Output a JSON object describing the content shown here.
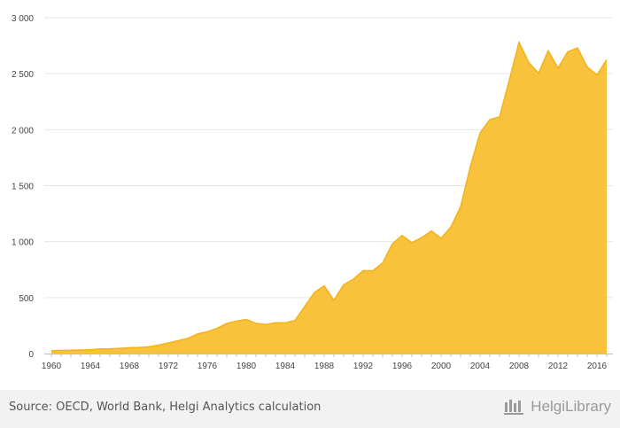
{
  "chart_data": {
    "type": "area",
    "x": [
      1960,
      1961,
      1962,
      1963,
      1964,
      1965,
      1966,
      1967,
      1968,
      1969,
      1970,
      1971,
      1972,
      1973,
      1974,
      1975,
      1976,
      1977,
      1978,
      1979,
      1980,
      1981,
      1982,
      1983,
      1984,
      1985,
      1986,
      1987,
      1988,
      1989,
      1990,
      1991,
      1992,
      1993,
      1994,
      1995,
      1996,
      1997,
      1998,
      1999,
      2000,
      2001,
      2002,
      2003,
      2004,
      2005,
      2006,
      2007,
      2008,
      2009,
      2010,
      2011,
      2012,
      2013,
      2014,
      2015,
      2016,
      2017
    ],
    "values": [
      25,
      28,
      30,
      32,
      35,
      40,
      43,
      47,
      52,
      55,
      60,
      75,
      95,
      115,
      135,
      175,
      195,
      225,
      270,
      290,
      305,
      270,
      260,
      275,
      275,
      295,
      420,
      545,
      605,
      475,
      615,
      665,
      740,
      740,
      810,
      980,
      1055,
      990,
      1035,
      1095,
      1030,
      1130,
      1310,
      1670,
      1970,
      2090,
      2115,
      2440,
      2780,
      2600,
      2505,
      2705,
      2550,
      2695,
      2730,
      2560,
      2490,
      2625
    ],
    "yticks": [
      "0",
      "500",
      "1 000",
      "1 500",
      "2 000",
      "2 500",
      "3 000"
    ],
    "xticks": [
      "1960",
      "1964",
      "1968",
      "1972",
      "1976",
      "1980",
      "1984",
      "1988",
      "1992",
      "1996",
      "2000",
      "2004",
      "2008",
      "2012",
      "2016"
    ],
    "ylim": [
      0,
      3000
    ],
    "xlim": [
      1960,
      2017
    ],
    "grid": true,
    "colors": {
      "fill": "#f9c23c",
      "line": "#f4b21a",
      "grid": "#e6e6e6"
    }
  },
  "footer": {
    "source": "Source: OECD, World Bank, Helgi Analytics calculation",
    "logo_text": "HelgiLibrary",
    "logo_icon": "library-shelves-icon"
  }
}
